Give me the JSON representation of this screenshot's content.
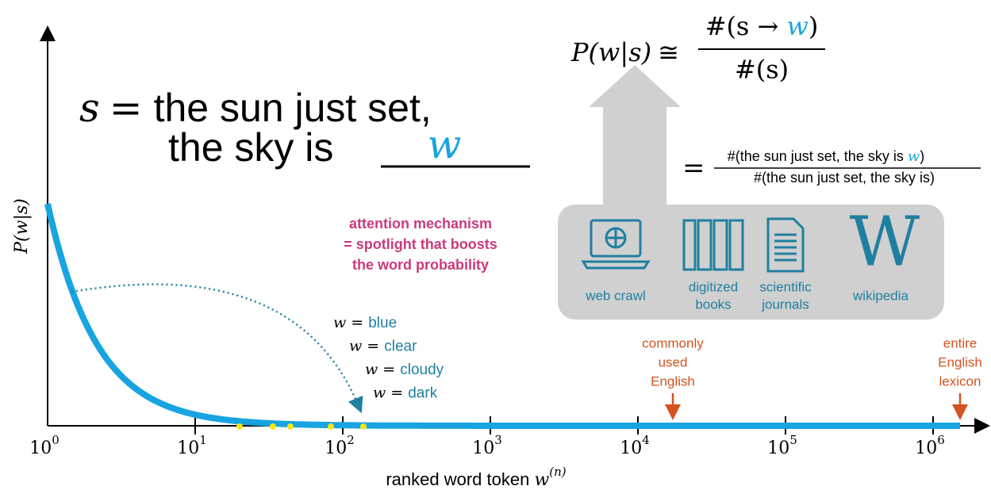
{
  "sentence": {
    "variable": "s",
    "equals": "=",
    "line1": "the sun just set,",
    "line2": "the sky is",
    "blank": "w"
  },
  "formula": {
    "lhs": "P(w|s)",
    "approx": "≅",
    "numerator_open": "#(s → ",
    "numerator_word": "w",
    "numerator_close": ")",
    "denominator": "#(s)",
    "equals": "=",
    "numerator2_text": "#(the sun just set, the sky is ",
    "numerator2_word": "w",
    "numerator2_close": ")",
    "denominator2": "#(the sun just set, the sky is)"
  },
  "sources": [
    "web crawl",
    [
      "digitized",
      "books"
    ],
    [
      "scientific",
      "journals"
    ],
    "wikipedia"
  ],
  "attention": [
    "attention mechanism",
    "= spotlight that boosts",
    "the word probability"
  ],
  "candidates": [
    {
      "var": "w =",
      "word": "blue"
    },
    {
      "var": "w =",
      "word": "clear"
    },
    {
      "var": "w =",
      "word": "cloudy"
    },
    {
      "var": "w =",
      "word": "dark"
    }
  ],
  "markers": [
    [
      "commonly",
      "used",
      "English"
    ],
    [
      "entire",
      "English",
      "lexicon"
    ]
  ],
  "axes": {
    "y_label": "P(w|s)",
    "x_label": "ranked word token ",
    "x_label_math": "w",
    "x_label_sup": "(n)",
    "x_ticks": [
      {
        "base": "10",
        "exp": "0"
      },
      {
        "base": "10",
        "exp": "1"
      },
      {
        "base": "10",
        "exp": "2"
      },
      {
        "base": "10",
        "exp": "3"
      },
      {
        "base": "10",
        "exp": "4"
      },
      {
        "base": "10",
        "exp": "5"
      },
      {
        "base": "10",
        "exp": "6"
      }
    ]
  }
}
